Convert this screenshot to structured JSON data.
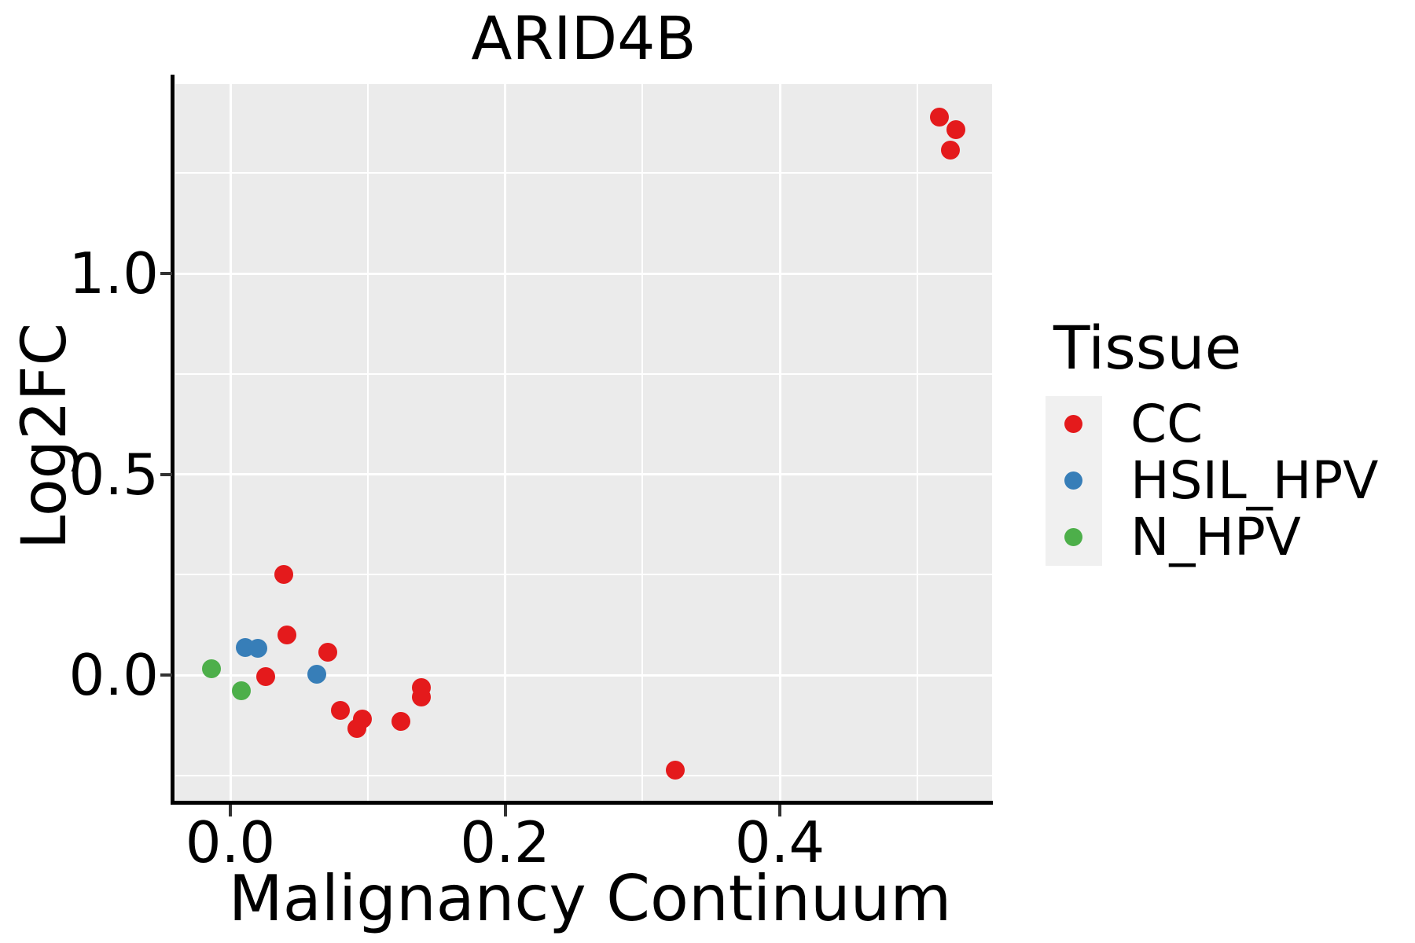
{
  "title": "ARID4B",
  "axes": {
    "x": {
      "label": "Malignancy Continuum",
      "ticks": [
        0.0,
        0.2,
        0.4
      ],
      "tick_labels": [
        "0.0",
        "0.2",
        "0.4"
      ],
      "minor_ticks": [
        0.1,
        0.3,
        0.5
      ],
      "range": [
        -0.04,
        0.5545
      ]
    },
    "y": {
      "label": "Log2FC",
      "ticks": [
        0.0,
        0.5,
        1.0
      ],
      "tick_labels": [
        "0.0",
        "0.5",
        "1.0"
      ],
      "minor_ticks": [
        -0.25,
        0.25,
        0.75,
        1.25
      ],
      "range": [
        -0.317,
        1.472
      ]
    }
  },
  "legend": {
    "title": "Tissue",
    "position": "right",
    "entries": [
      {
        "label": "CC",
        "color": "#E41A1C"
      },
      {
        "label": "HSIL_HPV",
        "color": "#377EB8"
      },
      {
        "label": "N_HPV",
        "color": "#4DAF4A"
      }
    ]
  },
  "colors": {
    "panel_background": "#EBEBEB",
    "gridline": "#FFFFFF",
    "axis_line": "#000000",
    "tick_mark": "#333333",
    "text": "#000000",
    "legend_key_background": "#F0F0F0"
  },
  "chart_data": {
    "type": "scatter",
    "title": "ARID4B",
    "xlabel": "Malignancy Continuum",
    "ylabel": "Log2FC",
    "xlim": [
      -0.04,
      0.55
    ],
    "ylim": [
      -0.32,
      1.47
    ],
    "grid": true,
    "legend_title": "Tissue",
    "legend_position": "right",
    "series": [
      {
        "name": "CC",
        "color": "#E41A1C",
        "points": [
          [
            0.039,
            0.25
          ],
          [
            0.041,
            0.1
          ],
          [
            0.026,
            -0.004
          ],
          [
            0.071,
            0.057
          ],
          [
            0.08,
            -0.089
          ],
          [
            0.092,
            -0.134
          ],
          [
            0.096,
            -0.11
          ],
          [
            0.124,
            -0.116
          ],
          [
            0.139,
            -0.031
          ],
          [
            0.139,
            -0.055
          ],
          [
            0.324,
            -0.237
          ],
          [
            0.516,
            1.389
          ],
          [
            0.528,
            1.358
          ],
          [
            0.524,
            1.307
          ]
        ]
      },
      {
        "name": "HSIL_HPV",
        "color": "#377EB8",
        "points": [
          [
            0.011,
            0.068
          ],
          [
            0.02,
            0.066
          ],
          [
            0.063,
            0.001
          ]
        ]
      },
      {
        "name": "N_HPV",
        "color": "#4DAF4A",
        "points": [
          [
            -0.014,
            0.016
          ],
          [
            0.008,
            -0.04
          ]
        ]
      }
    ]
  }
}
